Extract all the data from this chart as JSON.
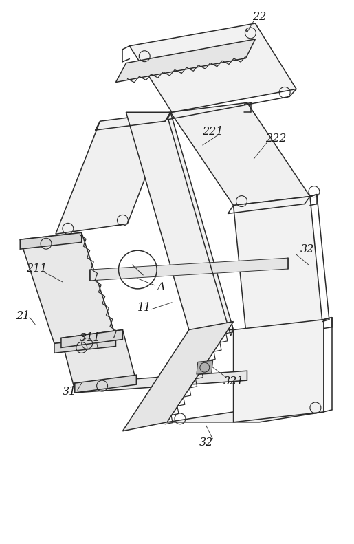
{
  "fig_width": 5.15,
  "fig_height": 7.91,
  "dpi": 100,
  "bg_color": "#ffffff",
  "line_color": "#2a2a2a",
  "line_width": 1.1,
  "thin_lw": 0.65,
  "label_fontsize": 11.5,
  "label_color": "#1a1a1a"
}
